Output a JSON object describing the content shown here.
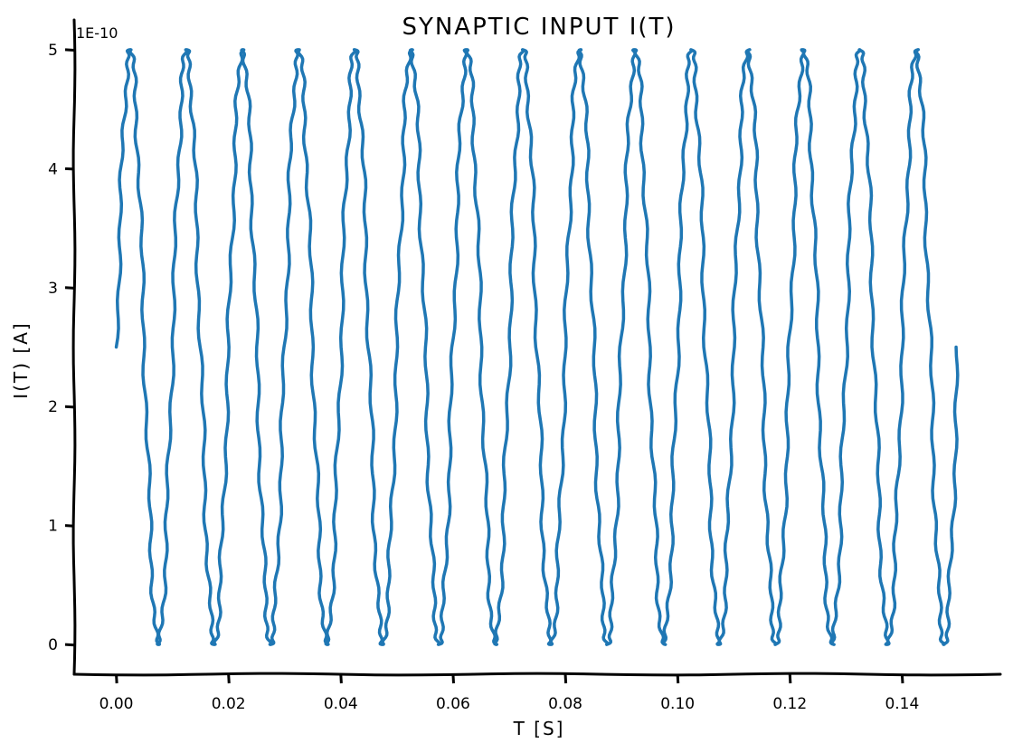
{
  "chart_data": {
    "type": "line",
    "title": "SYNAPTIC INPUT I(T)",
    "xlabel": "T [S]",
    "ylabel": "I(T) [A]",
    "y_offset_label": "1E-10",
    "xlim": [
      -0.0075,
      0.1575
    ],
    "ylim": [
      -0.25,
      5.25
    ],
    "x_ticks": [
      0.0,
      0.02,
      0.04,
      0.06,
      0.08,
      0.1,
      0.12,
      0.14
    ],
    "x_tick_labels": [
      "0.00",
      "0.02",
      "0.04",
      "0.06",
      "0.08",
      "0.10",
      "0.12",
      "0.14"
    ],
    "y_ticks": [
      0,
      1,
      2,
      3,
      4,
      5
    ],
    "y_tick_labels": [
      "0",
      "1",
      "2",
      "3",
      "4",
      "5"
    ],
    "grid": false,
    "series": [
      {
        "color": "#1f77b4",
        "function": "sine",
        "offset": 2.5,
        "amplitude": 2.5,
        "frequency_hz": 100,
        "x_range": [
          0.0,
          0.15
        ],
        "y_units": "1E-10 A"
      }
    ]
  }
}
